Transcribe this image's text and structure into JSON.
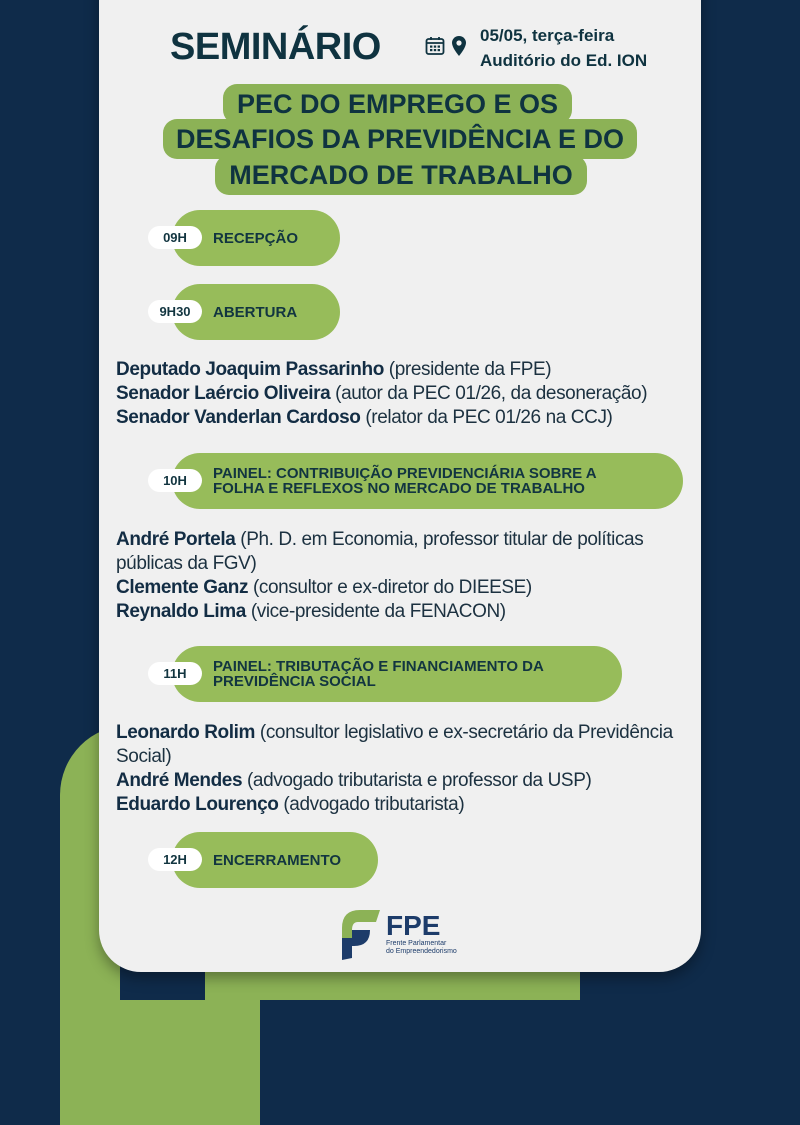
{
  "header": {
    "title": "SEMINÁRIO",
    "date": "05/05, terça-feira",
    "location": "Auditório do Ed. ION",
    "icons": [
      "calendar-icon",
      "location-pin-icon"
    ]
  },
  "event_title": [
    "PEC DO EMPREGO E OS",
    "DESAFIOS DA PREVIDÊNCIA E DO",
    "MERCADO DE TRABALHO"
  ],
  "schedule": [
    {
      "time": "09H",
      "label": "RECEPÇÃO"
    },
    {
      "time": "9H30",
      "label": "ABERTURA",
      "speakers": [
        {
          "name": "Deputado Joaquim Passarinho",
          "role": " (presidente da FPE)"
        },
        {
          "name": "Senador Laércio Oliveira",
          "role": " (autor da PEC 01/26, da desoneração)"
        },
        {
          "name": "Senador Vanderlan Cardoso",
          "role": " (relator da PEC 01/26 na CCJ)"
        }
      ]
    },
    {
      "time": "10H",
      "label_lines": [
        "PAINEL: CONTRIBUIÇÃO PREVIDENCIÁRIA SOBRE A",
        "FOLHA E REFLEXOS NO MERCADO DE TRABALHO"
      ],
      "speakers": [
        {
          "name": "André Portela",
          "role": " (Ph. D. em Economia, professor titular de políticas públicas da FGV)"
        },
        {
          "name": "Clemente Ganz",
          "role": " (consultor e ex-diretor do DIEESE)"
        },
        {
          "name": "Reynaldo Lima",
          "role": " (vice-presidente da FENACON)"
        }
      ]
    },
    {
      "time": "11H",
      "label_lines": [
        "PAINEL: TRIBUTAÇÃO E FINANCIAMENTO DA",
        "PREVIDÊNCIA SOCIAL"
      ],
      "speakers": [
        {
          "name": "Leonardo Rolim",
          "role": " (consultor legislativo e ex-secretário da Previdência Social)"
        },
        {
          "name": "André Mendes",
          "role": " (advogado tributarista e professor da USP)"
        },
        {
          "name": "Eduardo Lourenço",
          "role": " (advogado tributarista)"
        }
      ]
    },
    {
      "time": "12H",
      "label": "ENCERRAMENTO"
    }
  ],
  "logo": {
    "name": "FPE",
    "subtitle_1": "Frente Parlamentar",
    "subtitle_2": "do Empreendedorismo"
  },
  "colors": {
    "navy": "#0f2b4a",
    "green": "#97bc5a",
    "card": "#f0f0f0",
    "text": "#0f3340"
  }
}
